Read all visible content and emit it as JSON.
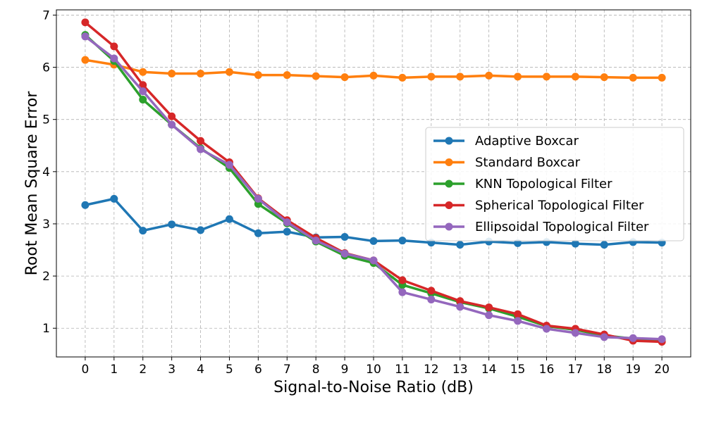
{
  "chart_data": {
    "type": "line",
    "title": "",
    "xlabel": "Signal-to-Noise Ratio (dB)",
    "ylabel": "Root Mean Square Error",
    "x": [
      0,
      1,
      2,
      3,
      4,
      5,
      6,
      7,
      8,
      9,
      10,
      11,
      12,
      13,
      14,
      15,
      16,
      17,
      18,
      19,
      20
    ],
    "xticks": [
      "0",
      "1",
      "2",
      "3",
      "4",
      "5",
      "6",
      "7",
      "8",
      "9",
      "10",
      "11",
      "12",
      "13",
      "14",
      "15",
      "16",
      "17",
      "18",
      "19",
      "20"
    ],
    "yticks": [
      "1",
      "2",
      "3",
      "4",
      "5",
      "6",
      "7"
    ],
    "xlim": [
      -1,
      21
    ],
    "ylim": [
      0.45,
      7.1
    ],
    "grid": true,
    "legend_position": "center-right",
    "series": [
      {
        "name": "Adaptive Boxcar",
        "color": "#1f77b4",
        "values": [
          3.36,
          3.48,
          2.87,
          2.99,
          2.88,
          3.09,
          2.82,
          2.85,
          2.74,
          2.75,
          2.67,
          2.68,
          2.64,
          2.6,
          2.66,
          2.63,
          2.65,
          2.62,
          2.6,
          2.65,
          2.64
        ]
      },
      {
        "name": "Standard Boxcar",
        "color": "#ff7f0e",
        "values": [
          6.14,
          6.05,
          5.91,
          5.88,
          5.88,
          5.91,
          5.85,
          5.85,
          5.83,
          5.81,
          5.84,
          5.8,
          5.82,
          5.82,
          5.84,
          5.82,
          5.82,
          5.82,
          5.81,
          5.8,
          5.8
        ]
      },
      {
        "name": "KNN Topological Filter",
        "color": "#2ca02c",
        "values": [
          6.62,
          6.12,
          5.38,
          4.9,
          4.45,
          4.07,
          3.38,
          3.01,
          2.66,
          2.39,
          2.25,
          1.83,
          1.67,
          1.5,
          1.38,
          1.22,
          1.04,
          0.97,
          0.86,
          0.8,
          0.78
        ]
      },
      {
        "name": "Spherical Topological Filter",
        "color": "#d62728",
        "values": [
          6.86,
          6.4,
          5.66,
          5.06,
          4.59,
          4.18,
          3.49,
          3.07,
          2.73,
          2.44,
          2.3,
          1.92,
          1.72,
          1.52,
          1.4,
          1.27,
          1.05,
          0.99,
          0.88,
          0.76,
          0.74
        ]
      },
      {
        "name": "Ellipsoidal Topological Filter",
        "color": "#9467bd",
        "values": [
          6.59,
          6.17,
          5.54,
          4.9,
          4.43,
          4.13,
          3.48,
          3.03,
          2.68,
          2.43,
          2.3,
          1.69,
          1.55,
          1.41,
          1.25,
          1.14,
          0.99,
          0.91,
          0.83,
          0.81,
          0.79
        ]
      }
    ]
  }
}
